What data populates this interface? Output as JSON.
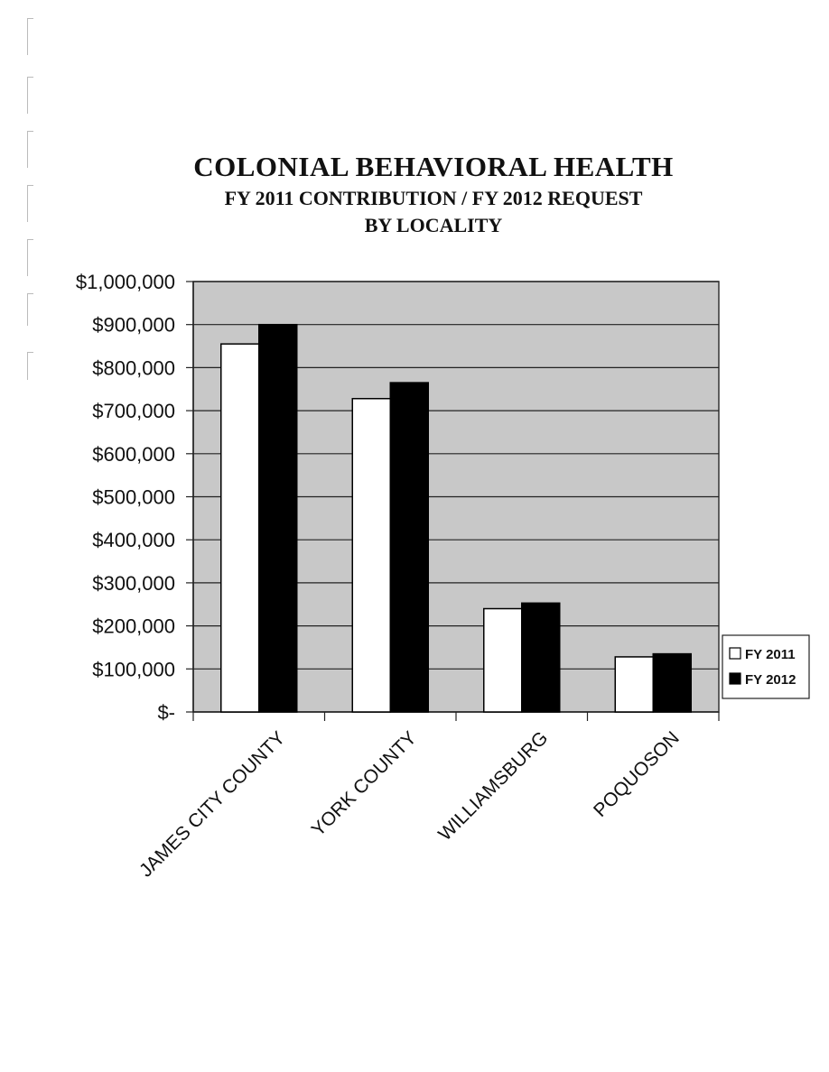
{
  "title": "COLONIAL BEHAVIORAL HEALTH",
  "subtitle_1": "FY 2011 CONTRIBUTION / FY 2012 REQUEST",
  "subtitle_2": "BY LOCALITY",
  "chart_data": {
    "type": "bar",
    "categories": [
      "JAMES CITY COUNTY",
      "YORK COUNTY",
      "WILLIAMSBURG",
      "POQUOSON"
    ],
    "series": [
      {
        "name": "FY 2011",
        "values": [
          855000,
          728000,
          240000,
          128000
        ],
        "color": "#ffffff"
      },
      {
        "name": "FY 2012",
        "values": [
          900000,
          765000,
          253000,
          135000
        ],
        "color": "#000000"
      }
    ],
    "ylim": [
      0,
      1000000
    ],
    "yticks": [
      0,
      100000,
      200000,
      300000,
      400000,
      500000,
      600000,
      700000,
      800000,
      900000,
      1000000
    ],
    "ytick_labels": [
      "$-",
      "$100,000",
      "$200,000",
      "$300,000",
      "$400,000",
      "$500,000",
      "$600,000",
      "$700,000",
      "$800,000",
      "$900,000",
      "$1,000,000"
    ],
    "grid": true,
    "legend_position": "right",
    "plot_background": "#c8c8c8"
  }
}
